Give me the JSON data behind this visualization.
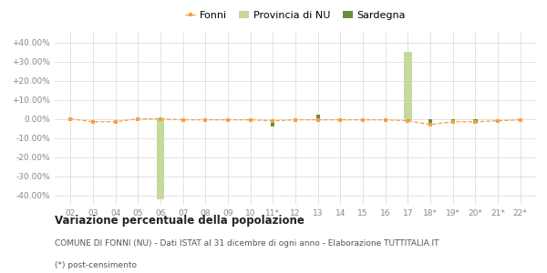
{
  "x_labels": [
    "02",
    "03",
    "04",
    "05",
    "06",
    "07",
    "08",
    "09",
    "10",
    "11*",
    "12",
    "13",
    "14",
    "15",
    "16",
    "17",
    "18*",
    "19*",
    "20*",
    "21*",
    "22*"
  ],
  "x_indices": [
    0,
    1,
    2,
    3,
    4,
    5,
    6,
    7,
    8,
    9,
    10,
    11,
    12,
    13,
    14,
    15,
    16,
    17,
    18,
    19,
    20
  ],
  "fonni": [
    0.0,
    -1.5,
    -1.5,
    0.0,
    0.0,
    -0.5,
    -0.5,
    -0.5,
    -0.5,
    -1.0,
    -0.5,
    -0.5,
    -0.5,
    -0.5,
    -0.5,
    -1.0,
    -3.0,
    -1.5,
    -1.5,
    -1.0,
    -0.5
  ],
  "provincia_nu": [
    0.0,
    0.0,
    0.0,
    0.0,
    -42.0,
    0.0,
    0.0,
    0.0,
    0.0,
    0.0,
    0.0,
    0.0,
    0.0,
    0.0,
    0.0,
    35.0,
    0.0,
    0.0,
    0.0,
    0.0,
    0.0
  ],
  "sardegna": [
    0.0,
    0.0,
    0.0,
    0.0,
    0.0,
    0.0,
    0.0,
    0.0,
    0.0,
    -4.0,
    0.0,
    2.0,
    0.0,
    -1.0,
    -1.0,
    -1.0,
    -2.5,
    -2.0,
    -2.0,
    -1.5,
    -0.5
  ],
  "fonni_color": "#f4a142",
  "provincia_nu_color": "#c5d99a",
  "sardegna_color": "#6b8f3e",
  "ylim": [
    -45,
    45
  ],
  "yticks": [
    -40,
    -30,
    -20,
    -10,
    0,
    10,
    20,
    30,
    40
  ],
  "title_bold": "Variazione percentuale della popolazione",
  "subtitle": "COMUNE DI FONNI (NU) - Dati ISTAT al 31 dicembre di ogni anno - Elaborazione TUTTITALIA.IT",
  "footnote": "(*) post-censimento",
  "legend_labels": [
    "Fonni",
    "Provincia di NU",
    "Sardegna"
  ],
  "bg_color": "#ffffff",
  "grid_color": "#dddddd"
}
